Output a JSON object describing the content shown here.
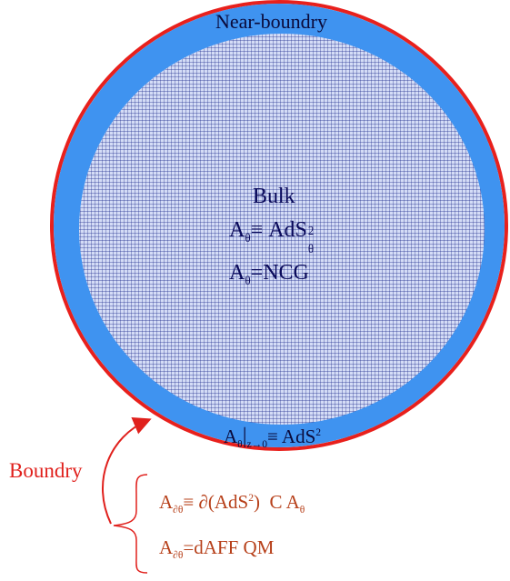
{
  "colors": {
    "outer_ring": "#e8201c",
    "near_boundary_band": "#3f93f0",
    "grid_fill": "#d4dcf6",
    "grid_lines": "#1d2a8c",
    "bulk_text": "#0a0a5a",
    "boundary_label": "#e0201c",
    "boundary_equations": "#b7401a"
  },
  "labels": {
    "near_boundary": "Near-boundry",
    "bulk": "Bulk",
    "boundary": "Boundry"
  },
  "bulk_equations": {
    "eq1": {
      "base": "A",
      "sub": "θ",
      "rel": "≡ AdS",
      "sup": "2",
      "sup_sub": "θ"
    },
    "eq2": {
      "base": "A",
      "sub": "θ",
      "rest": "=NCG"
    }
  },
  "boundary_limit": {
    "base": "A",
    "sub1": "θ",
    "bar": "|",
    "sub2": "z→0",
    "rel": "≡ AdS",
    "sup": "2"
  },
  "boundary_equations": {
    "eq1": {
      "base": "A",
      "sub": "∂θ",
      "mid": "≡ ∂(AdS",
      "sup": "2",
      "close": ")  C A",
      "tail_sub": "θ"
    },
    "eq2": {
      "base": "A",
      "sub": "∂θ",
      "rest": "=dAFF QM"
    }
  }
}
